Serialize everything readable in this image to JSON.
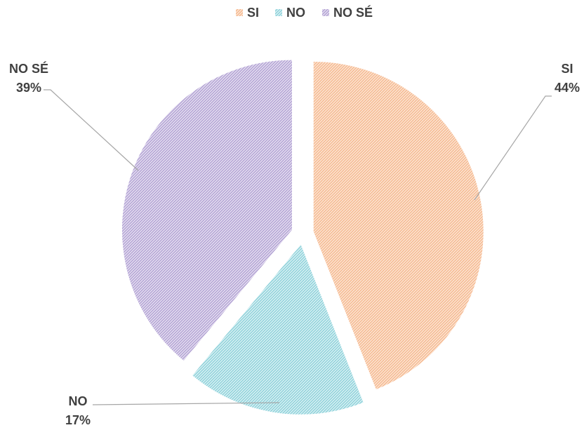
{
  "chart_data": {
    "type": "pie",
    "legend_position": "top",
    "slices": [
      {
        "key": "si",
        "label": "SI",
        "value": 44,
        "value_label": "44%",
        "color": "#F4B183"
      },
      {
        "key": "no",
        "label": "NO",
        "value": 17,
        "value_label": "17%",
        "color": "#8FD3DC"
      },
      {
        "key": "nose",
        "label": "NO SÉ",
        "value": 39,
        "value_label": "39%",
        "color": "#B4A7D6"
      }
    ]
  }
}
